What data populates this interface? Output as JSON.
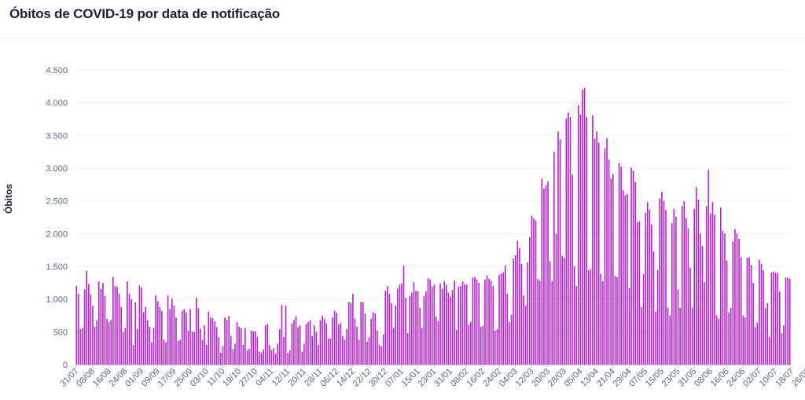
{
  "page": {
    "title": "Óbitos de COVID-19 por data de notificação"
  },
  "colors": {
    "bar": "#b620d4",
    "grid": "#f0f1f6",
    "axis": "#c9ced9",
    "text": "#5a6a88",
    "title": "#1d1d3b"
  },
  "chart_data": {
    "type": "bar",
    "title": "Óbitos de COVID-19 por data de notificação",
    "xlabel": "",
    "ylabel": "Óbitos",
    "ylim": [
      0,
      4500
    ],
    "yticks": [
      0,
      500,
      1000,
      1500,
      2000,
      2500,
      3000,
      3500,
      4000,
      4500
    ],
    "ytick_labels": [
      "0",
      "500",
      "1.000",
      "1.500",
      "2.000",
      "2.500",
      "3.000",
      "3.500",
      "4.000",
      "4.500"
    ],
    "xtick_labels": [
      "31/07",
      "08/08",
      "16/08",
      "24/08",
      "01/09",
      "09/09",
      "17/09",
      "25/09",
      "03/10",
      "11/10",
      "19/10",
      "27/10",
      "04/11",
      "12/11",
      "20/11",
      "28/11",
      "06/12",
      "14/12",
      "22/12",
      "30/12",
      "07/01",
      "15/01",
      "23/01",
      "31/01",
      "08/02",
      "16/02",
      "24/02",
      "04/03",
      "12/03",
      "20/03",
      "28/03",
      "05/04",
      "13/04",
      "21/04",
      "29/04",
      "07/05",
      "15/05",
      "23/05",
      "31/05",
      "08/06",
      "16/06",
      "24/06",
      "02/07",
      "10/07",
      "18/07",
      "26/07"
    ],
    "series": [
      {
        "name": "Óbitos",
        "values": [
          1200,
          1080,
          540,
          560,
          1150,
          1430,
          1230,
          1070,
          900,
          580,
          680,
          1270,
          1160,
          1250,
          1050,
          700,
          650,
          680,
          1340,
          1200,
          1190,
          1080,
          880,
          500,
          560,
          1270,
          1080,
          1000,
          300,
          950,
          540,
          1210,
          1180,
          800,
          880,
          680,
          580,
          340,
          560,
          1060,
          970,
          880,
          820,
          380,
          340,
          1060,
          850,
          1010,
          900,
          720,
          360,
          380,
          820,
          850,
          800,
          520,
          850,
          500,
          500,
          1020,
          860,
          550,
          380,
          600,
          300,
          810,
          720,
          710,
          660,
          570,
          420,
          180,
          280,
          720,
          680,
          740,
          440,
          240,
          320,
          650,
          580,
          560,
          300,
          560,
          220,
          240,
          520,
          510,
          510,
          420,
          200,
          180,
          230,
          600,
          620,
          300,
          220,
          250,
          170,
          320,
          540,
          910,
          420,
          900,
          180,
          220,
          630,
          680,
          740,
          570,
          600,
          200,
          320,
          620,
          650,
          680,
          440,
          600,
          500,
          300,
          680,
          750,
          700,
          630,
          400,
          400,
          720,
          820,
          790,
          610,
          640,
          440,
          380,
          540,
          960,
          940,
          1080,
          700,
          580,
          380,
          960,
          950,
          780,
          350,
          420,
          700,
          800,
          780,
          520,
          300,
          280,
          460,
          1130,
          1200,
          1080,
          940,
          560,
          900,
          1160,
          1220,
          1240,
          1510,
          1020,
          480,
          1050,
          1100,
          1260,
          1130,
          1120,
          870,
          560,
          1040,
          1120,
          1320,
          1300,
          1190,
          1220,
          730,
          660,
          1240,
          1160,
          1270,
          1220,
          1100,
          1040,
          1140,
          1280,
          530,
          1190,
          1200,
          1270,
          1230,
          1220,
          610,
          650,
          1330,
          1340,
          1300,
          1250,
          580,
          590,
          1300,
          1360,
          1310,
          1280,
          1200,
          520,
          540,
          1370,
          1390,
          1410,
          1510,
          1080,
          650,
          760,
          1620,
          1670,
          1890,
          1780,
          1540,
          1060,
          900,
          1560,
          1950,
          2270,
          2230,
          2200,
          1310,
          1280,
          2840,
          2690,
          2740,
          2800,
          1580,
          1280,
          3250,
          2000,
          3560,
          3440,
          1660,
          1630,
          3760,
          3850,
          3780,
          2900,
          1500,
          1200,
          3960,
          3820,
          4200,
          4230,
          3780,
          1440,
          1460,
          3810,
          3450,
          3560,
          3390,
          1390,
          1270,
          3300,
          3460,
          3130,
          2840,
          2910,
          1360,
          1340,
          3080,
          3020,
          2660,
          2580,
          2610,
          1170,
          3010,
          2960,
          2790,
          2170,
          2190,
          880,
          1380,
          2320,
          2480,
          2370,
          2140,
          1730,
          810,
          1450,
          2540,
          2640,
          2500,
          2360,
          870,
          750,
          2160,
          2380,
          2260,
          1150,
          870,
          2420,
          2500,
          2240,
          2080,
          1480,
          870,
          2380,
          2710,
          2520,
          2000,
          1810,
          1260,
          2420,
          2980,
          2310,
          2480,
          2290,
          750,
          700,
          2400,
          2040,
          2000,
          1590,
          800,
          870,
          1880,
          2070,
          2000,
          1920,
          1640,
          750,
          720,
          1630,
          1640,
          1520,
          1250,
          570,
          640,
          1600,
          1540,
          1440,
          860,
          940,
          420,
          1410,
          1420,
          1400,
          1400,
          1120,
          480,
          600,
          1330,
          1330,
          1310
        ]
      }
    ]
  }
}
